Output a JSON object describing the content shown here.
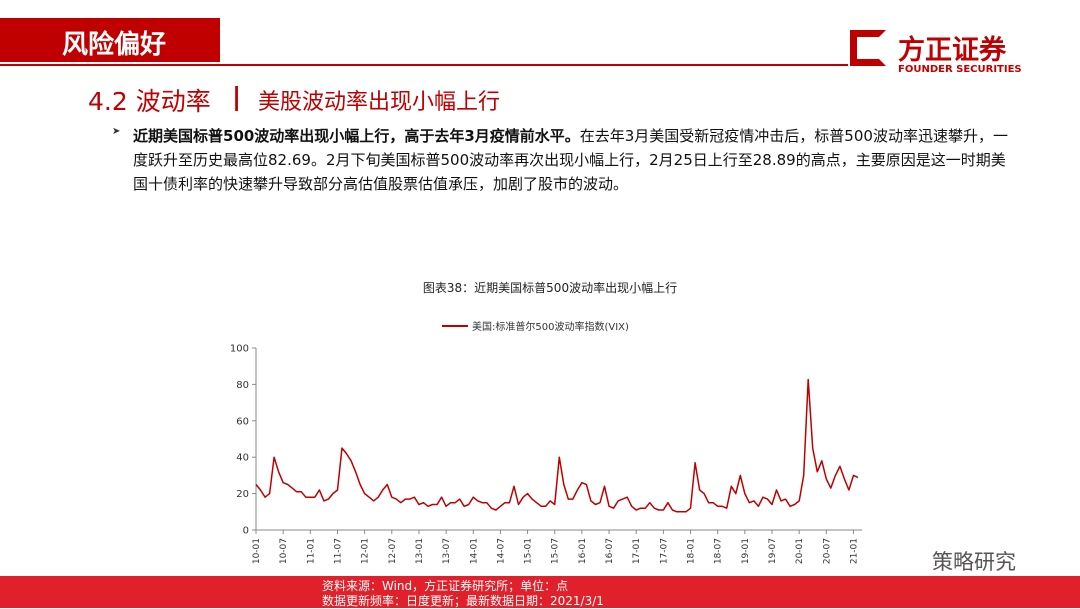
{
  "header": {
    "section": "风险偏好",
    "logo_cn": "方正证券",
    "logo_en": "FOUNDER SECURITIES"
  },
  "heading": {
    "number_title": "4.2 波动率",
    "separator": "|",
    "subtitle": "美股波动率出现小幅上行"
  },
  "bullet": {
    "bold": "近期美国标普500波动率出现小幅上行，高于去年3月疫情前水平。",
    "text": "在去年3月美国受新冠疫情冲击后，标普500波动率迅速攀升，一度跃升至历史最高位82.69。2月下旬美国标普500波动率再次出现小幅上行，2月25日上行至28.89的高点，主要原因是这一时期美国十债利率的快速攀升导致部分高估值股票估值承压，加剧了股市的波动。"
  },
  "chart_data": {
    "type": "line",
    "title": "图表38：近期美国标普500波动率出现小幅上行",
    "categories": [
      "10-01",
      null,
      null,
      null,
      null,
      null,
      "10-07",
      null,
      null,
      null,
      null,
      null,
      "11-01",
      null,
      null,
      null,
      null,
      null,
      "11-07",
      null,
      null,
      null,
      null,
      null,
      "12-01",
      null,
      null,
      null,
      null,
      null,
      "12-07",
      null,
      null,
      null,
      null,
      null,
      "13-01",
      null,
      null,
      null,
      null,
      null,
      "13-07",
      null,
      null,
      null,
      null,
      null,
      "14-01",
      null,
      null,
      null,
      null,
      null,
      "14-07",
      null,
      null,
      null,
      null,
      null,
      "15-01",
      null,
      null,
      null,
      null,
      null,
      "15-07",
      null,
      null,
      null,
      null,
      null,
      "16-01",
      null,
      null,
      null,
      null,
      null,
      "16-07",
      null,
      null,
      null,
      null,
      null,
      "17-01",
      null,
      null,
      null,
      null,
      null,
      "17-07",
      null,
      null,
      null,
      null,
      null,
      "18-01",
      null,
      null,
      null,
      null,
      null,
      "18-07",
      null,
      null,
      null,
      null,
      null,
      "19-01",
      null,
      null,
      null,
      null,
      null,
      "19-07",
      null,
      null,
      null,
      null,
      null,
      "20-01",
      null,
      null,
      null,
      null,
      null,
      "20-07",
      null,
      null,
      null,
      null,
      null,
      "21-01",
      null
    ],
    "series": [
      {
        "name": "美国:标准普尔500波动率指数(VIX)",
        "color": "#c00000",
        "values": [
          25,
          22,
          18,
          20,
          40,
          32,
          26,
          25,
          23,
          21,
          21,
          18,
          18,
          18,
          22,
          16,
          17,
          20,
          22,
          45,
          42,
          38,
          32,
          25,
          20,
          18,
          16,
          18,
          22,
          25,
          18,
          17,
          15,
          17,
          17,
          18,
          14,
          15,
          13,
          14,
          14,
          18,
          13,
          15,
          15,
          17,
          13,
          14,
          18,
          16,
          15,
          15,
          12,
          11,
          13,
          15,
          15,
          24,
          14,
          18,
          20,
          17,
          15,
          13,
          13,
          16,
          14,
          40,
          25,
          17,
          17,
          22,
          26,
          25,
          16,
          14,
          15,
          24,
          13,
          12,
          16,
          17,
          18,
          13,
          11,
          12,
          12,
          15,
          12,
          11,
          11,
          15,
          11,
          10,
          10,
          10,
          12,
          37,
          22,
          20,
          15,
          15,
          13,
          13,
          12,
          24,
          20,
          30,
          20,
          15,
          16,
          13,
          18,
          17,
          14,
          22,
          16,
          17,
          13,
          14,
          16,
          30,
          82.69,
          45,
          32,
          38,
          28,
          23,
          30,
          35,
          28,
          22,
          30,
          28.89
        ]
      }
    ],
    "ylim": [
      0,
      100
    ],
    "yticks": [
      0,
      20,
      40,
      60,
      80,
      100
    ]
  },
  "footer": {
    "source": "资料来源：Wind，方正证券研究所；单位：点",
    "update": "数据更新频率：日度更新；最新数据日期：2021/3/1"
  },
  "watermark": "策略研究"
}
